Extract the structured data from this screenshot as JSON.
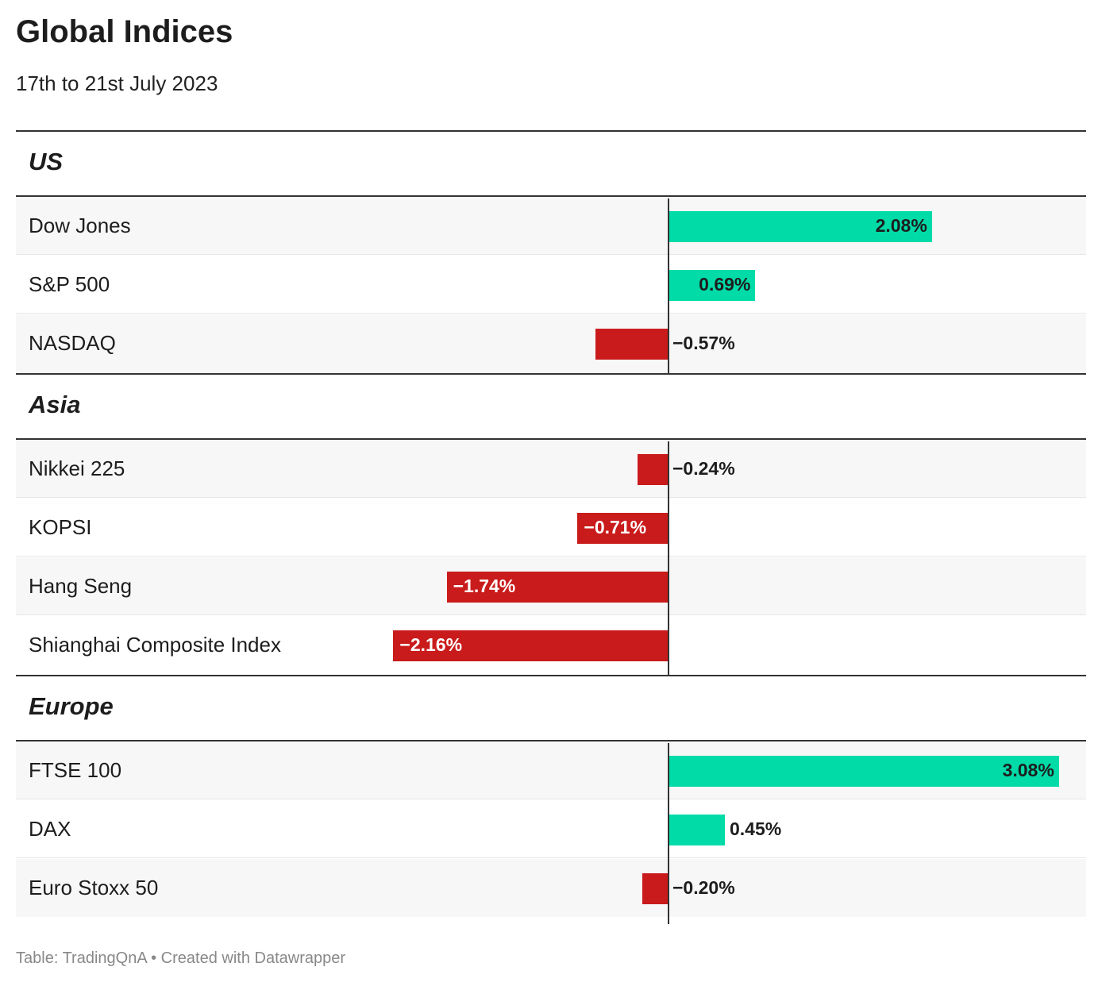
{
  "title": "Global Indices",
  "subtitle": "17th to 21st July 2023",
  "footer": "Table: TradingQnA • Created with Datawrapper",
  "colors": {
    "positive": "#00dba8",
    "negative": "#c91b1b",
    "text": "#1d1d1d"
  },
  "chart_data": {
    "type": "bar",
    "orientation": "horizontal",
    "unit": "%",
    "groups": [
      {
        "name": "US",
        "rows": [
          {
            "label": "Dow Jones",
            "value": 2.08,
            "display": "2.08%"
          },
          {
            "label": "S&P 500",
            "value": 0.69,
            "display": "0.69%"
          },
          {
            "label": "NASDAQ",
            "value": -0.57,
            "display": "−0.57%"
          }
        ]
      },
      {
        "name": "Asia",
        "rows": [
          {
            "label": "Nikkei 225",
            "value": -0.24,
            "display": "−0.24%"
          },
          {
            "label": "KOPSI",
            "value": -0.71,
            "display": "−0.71%"
          },
          {
            "label": "Hang Seng",
            "value": -1.74,
            "display": "−1.74%"
          },
          {
            "label": "Shianghai Composite Index",
            "value": -2.16,
            "display": "−2.16%"
          }
        ]
      },
      {
        "name": "Europe",
        "rows": [
          {
            "label": "FTSE 100",
            "value": 3.08,
            "display": "3.08%"
          },
          {
            "label": "DAX",
            "value": 0.45,
            "display": "0.45%"
          },
          {
            "label": "Euro Stoxx 50",
            "value": -0.2,
            "display": "−0.20%"
          }
        ]
      }
    ]
  }
}
